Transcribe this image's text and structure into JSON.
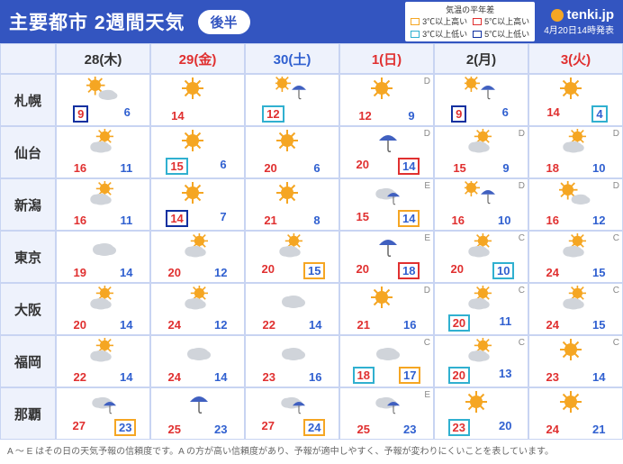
{
  "header": {
    "title": "主要都市 2週間天気",
    "pill": "後半",
    "legend": {
      "title": "気温の平年差",
      "items": [
        {
          "color": "#f5a623",
          "text": "3℃以上高い"
        },
        {
          "color": "#e03030",
          "text": "5℃以上高い"
        },
        {
          "color": "#30b0d0",
          "text": "3℃以上低い"
        },
        {
          "color": "#1030a0",
          "text": "5℃以上低い"
        }
      ]
    },
    "brand": "tenki.jp",
    "timestamp": "4月20日14時発表"
  },
  "colors": {
    "header_bg": "#3355c0",
    "grid_bg": "#eef2fc",
    "border": "#c8d4f2",
    "hi": "#e03030",
    "lo": "#3060d0",
    "sat": "#3060d0",
    "sun": "#e03030"
  },
  "days": [
    {
      "label": "28(木)",
      "color": "#333333"
    },
    {
      "label": "29(金)",
      "color": "#e03030"
    },
    {
      "label": "30(土)",
      "color": "#3060d0"
    },
    {
      "label": "1(日)",
      "color": "#e03030"
    },
    {
      "label": "2(月)",
      "color": "#333333"
    },
    {
      "label": "3(火)",
      "color": "#e03030"
    }
  ],
  "cities": [
    "札幌",
    "仙台",
    "新潟",
    "東京",
    "大阪",
    "福岡",
    "那覇"
  ],
  "icons": {
    "sunny": "sunny",
    "sun_cloud": "sun_cloud",
    "cloud_sun": "cloud_sun",
    "cloud": "cloud",
    "sun_rain": "sun_rain",
    "rain": "rain",
    "cloud_rain": "cloud_rain"
  },
  "grid": [
    [
      {
        "icon": "sun_cloud",
        "hi": 9,
        "lo": 6,
        "hi_box": "blue",
        "rel": ""
      },
      {
        "icon": "sunny",
        "hi": 14,
        "lo": "",
        "rel": ""
      },
      {
        "icon": "sun_rain",
        "hi": 12,
        "lo": "",
        "hi_box": "cyan",
        "rel": ""
      },
      {
        "icon": "sunny",
        "hi": 12,
        "lo": 9,
        "rel": "D"
      },
      {
        "icon": "sun_rain",
        "hi": 9,
        "lo": 6,
        "hi_box": "blue",
        "rel": ""
      },
      {
        "icon": "sunny",
        "hi": 14,
        "lo": 4,
        "lo_box": "cyan",
        "rel": ""
      }
    ],
    [
      {
        "icon": "cloud_sun",
        "hi": 16,
        "lo": 11,
        "rel": ""
      },
      {
        "icon": "sunny",
        "hi": 15,
        "lo": 6,
        "hi_box": "cyan",
        "rel": ""
      },
      {
        "icon": "sunny",
        "hi": 20,
        "lo": 6,
        "rel": ""
      },
      {
        "icon": "rain",
        "hi": 20,
        "lo": 14,
        "lo_box": "red",
        "rel": "D"
      },
      {
        "icon": "cloud_sun",
        "hi": 15,
        "lo": 9,
        "rel": "D"
      },
      {
        "icon": "cloud_sun",
        "hi": 18,
        "lo": 10,
        "rel": "D"
      }
    ],
    [
      {
        "icon": "cloud_sun",
        "hi": 16,
        "lo": 11,
        "rel": ""
      },
      {
        "icon": "sunny",
        "hi": 14,
        "lo": 7,
        "hi_box": "blue",
        "rel": ""
      },
      {
        "icon": "sunny",
        "hi": 21,
        "lo": 8,
        "rel": ""
      },
      {
        "icon": "cloud_rain",
        "hi": 15,
        "lo": 14,
        "lo_box": "orange",
        "rel": "E"
      },
      {
        "icon": "sun_rain",
        "hi": 16,
        "lo": 10,
        "rel": "D"
      },
      {
        "icon": "sun_cloud",
        "hi": 16,
        "lo": 12,
        "rel": "D"
      }
    ],
    [
      {
        "icon": "cloud",
        "hi": 19,
        "lo": 14,
        "rel": ""
      },
      {
        "icon": "cloud_sun",
        "hi": 20,
        "lo": 12,
        "rel": ""
      },
      {
        "icon": "cloud_sun",
        "hi": 20,
        "lo": 15,
        "lo_box": "orange",
        "rel": ""
      },
      {
        "icon": "rain",
        "hi": 20,
        "lo": 18,
        "lo_box": "red",
        "rel": "E"
      },
      {
        "icon": "cloud_sun",
        "hi": 20,
        "lo": 10,
        "lo_box": "cyan",
        "rel": "C"
      },
      {
        "icon": "cloud_sun",
        "hi": 24,
        "lo": 15,
        "rel": "C"
      }
    ],
    [
      {
        "icon": "cloud_sun",
        "hi": 20,
        "lo": 14,
        "rel": ""
      },
      {
        "icon": "cloud_sun",
        "hi": 24,
        "lo": 12,
        "rel": ""
      },
      {
        "icon": "cloud",
        "hi": 22,
        "lo": 14,
        "rel": ""
      },
      {
        "icon": "sunny",
        "hi": 21,
        "lo": 16,
        "rel": "D"
      },
      {
        "icon": "cloud_sun",
        "hi": 20,
        "lo": 11,
        "hi_box": "cyan",
        "rel": "C"
      },
      {
        "icon": "cloud_sun",
        "hi": 24,
        "lo": 15,
        "rel": "C"
      }
    ],
    [
      {
        "icon": "cloud_sun",
        "hi": 22,
        "lo": 14,
        "rel": ""
      },
      {
        "icon": "cloud",
        "hi": 24,
        "lo": 14,
        "rel": ""
      },
      {
        "icon": "cloud",
        "hi": 23,
        "lo": 16,
        "rel": ""
      },
      {
        "icon": "cloud",
        "hi": 18,
        "lo": 17,
        "hi_box": "cyan",
        "lo_box": "orange",
        "rel": "C"
      },
      {
        "icon": "cloud_sun",
        "hi": 20,
        "lo": 13,
        "hi_box": "cyan",
        "rel": "C"
      },
      {
        "icon": "sunny",
        "hi": 23,
        "lo": 14,
        "rel": "C"
      }
    ],
    [
      {
        "icon": "cloud_rain",
        "hi": 27,
        "lo": 23,
        "lo_box": "orange",
        "rel": ""
      },
      {
        "icon": "rain",
        "hi": 25,
        "lo": 23,
        "rel": ""
      },
      {
        "icon": "cloud_rain",
        "hi": 27,
        "lo": 24,
        "lo_box": "orange",
        "rel": ""
      },
      {
        "icon": "cloud_rain",
        "hi": 25,
        "lo": 23,
        "rel": "E"
      },
      {
        "icon": "sunny",
        "hi": 23,
        "lo": 20,
        "hi_box": "cyan",
        "rel": ""
      },
      {
        "icon": "sunny",
        "hi": 24,
        "lo": 21,
        "rel": ""
      }
    ]
  ],
  "footer": "A ～ E はその日の天気予報の信頼度です。A の方が高い信頼度があり、予報が適中しやすく、予報が変わりにくいことを表しています。"
}
